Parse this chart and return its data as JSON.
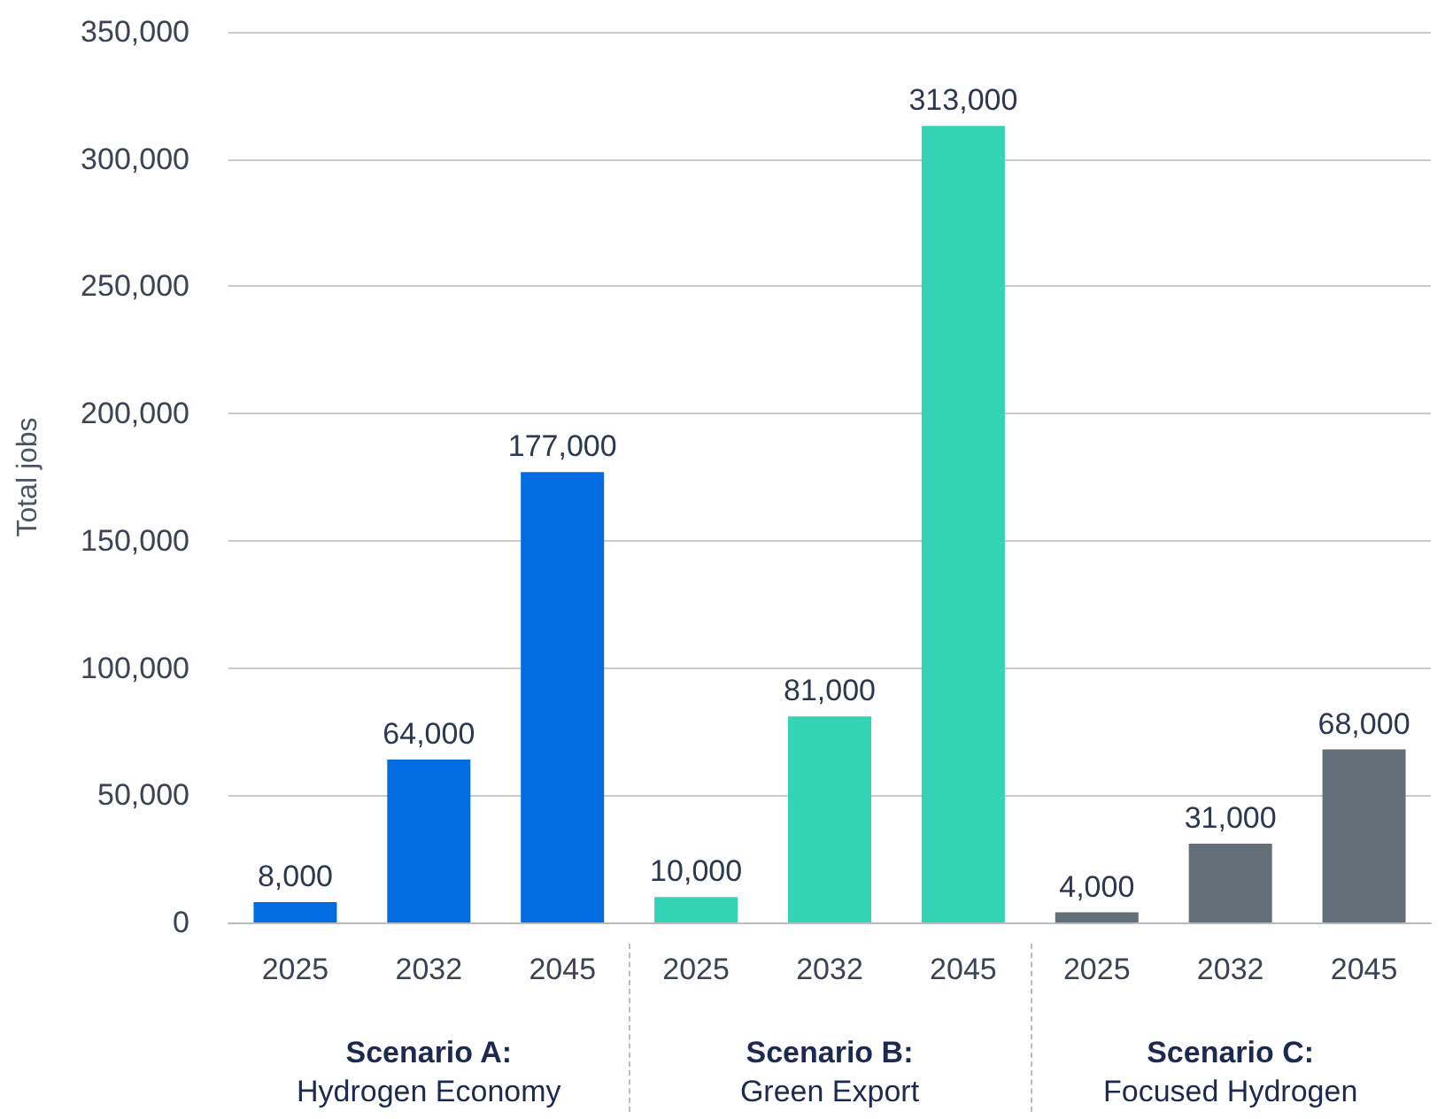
{
  "chart_data": {
    "type": "bar",
    "ylabel": "Total jobs",
    "categories": [
      "2025",
      "2032",
      "2045",
      "2025",
      "2032",
      "2045",
      "2025",
      "2032",
      "2045"
    ],
    "values": [
      8000,
      64000,
      177000,
      10000,
      81000,
      313000,
      4000,
      31000,
      68000
    ],
    "value_labels": [
      "8,000",
      "64,000",
      "177,000",
      "10,000",
      "81,000",
      "313,000",
      "4,000",
      "31,000",
      "68,000"
    ],
    "colors": [
      "#006ce0",
      "#006ce0",
      "#006ce0",
      "#33d3b6",
      "#33d3b6",
      "#33d3b6",
      "#637078",
      "#637078",
      "#637078"
    ],
    "ylim": [
      0,
      350000
    ],
    "yticks": [
      0,
      {
        "value": 50000,
        "label": "50,000"
      },
      {
        "value": 100000,
        "label": "100,000"
      },
      {
        "value": 150000,
        "label": "150,000"
      },
      {
        "value": 200000,
        "label": "200,000"
      },
      {
        "value": 250000,
        "label": "250,000"
      },
      {
        "value": 300000,
        "label": "300,000"
      },
      {
        "value": 350000,
        "label": "350,000"
      }
    ],
    "grid": "y",
    "annotations": [
      "Scenario A:",
      "Hydrogen Economy",
      "Scenario B:",
      "Green Export",
      "Scenario C:",
      "Focused Hydrogen"
    ]
  }
}
